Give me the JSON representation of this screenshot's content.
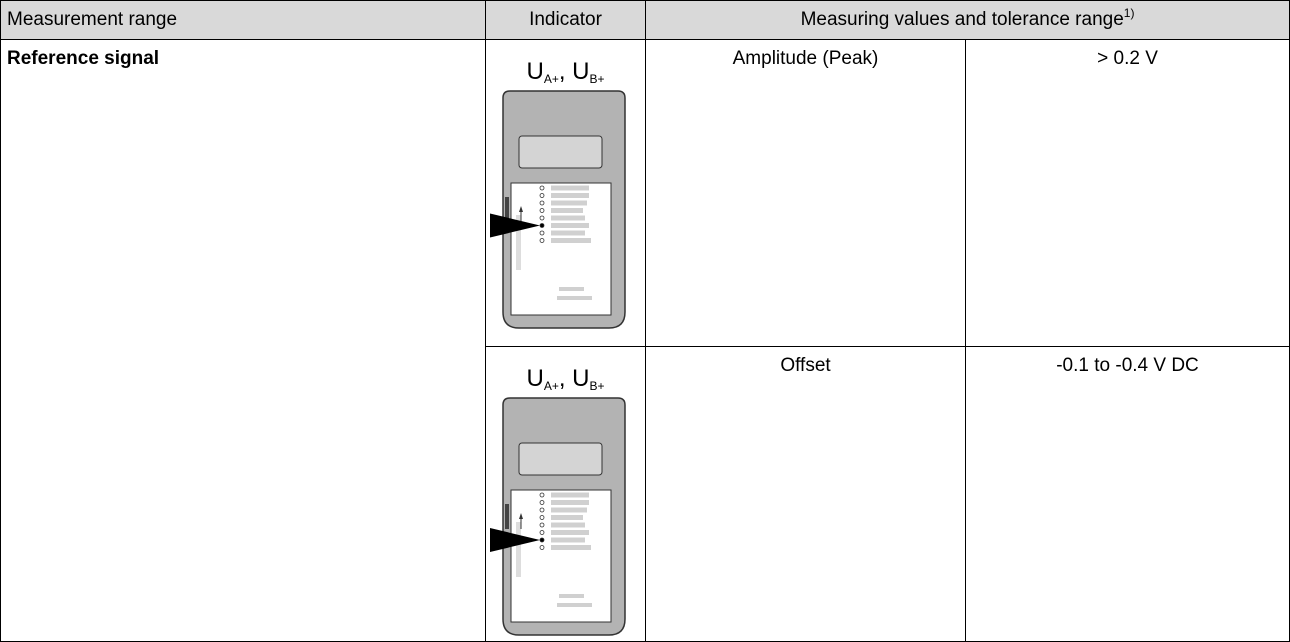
{
  "table": {
    "header": [
      "Measurement range",
      "Indicator",
      {
        "text": "Measuring values and tolerance range",
        "note": "1)"
      }
    ],
    "range": "Reference signal",
    "rows": [
      {
        "indicator": {
          "symbols": [
            {
              "base": "U",
              "sub": "A+"
            },
            {
              "base": "U",
              "sub": "B+"
            }
          ],
          "separator": ", "
        },
        "quantity": "Amplitude (Peak)",
        "value": "> 0.2 V"
      },
      {
        "indicator": {
          "symbols": [
            {
              "base": "U",
              "sub": "A+"
            },
            {
              "base": "U",
              "sub": "B+"
            }
          ],
          "separator": ", "
        },
        "quantity": "Offset",
        "value": "-0.1 to -0.4 V DC"
      }
    ]
  }
}
